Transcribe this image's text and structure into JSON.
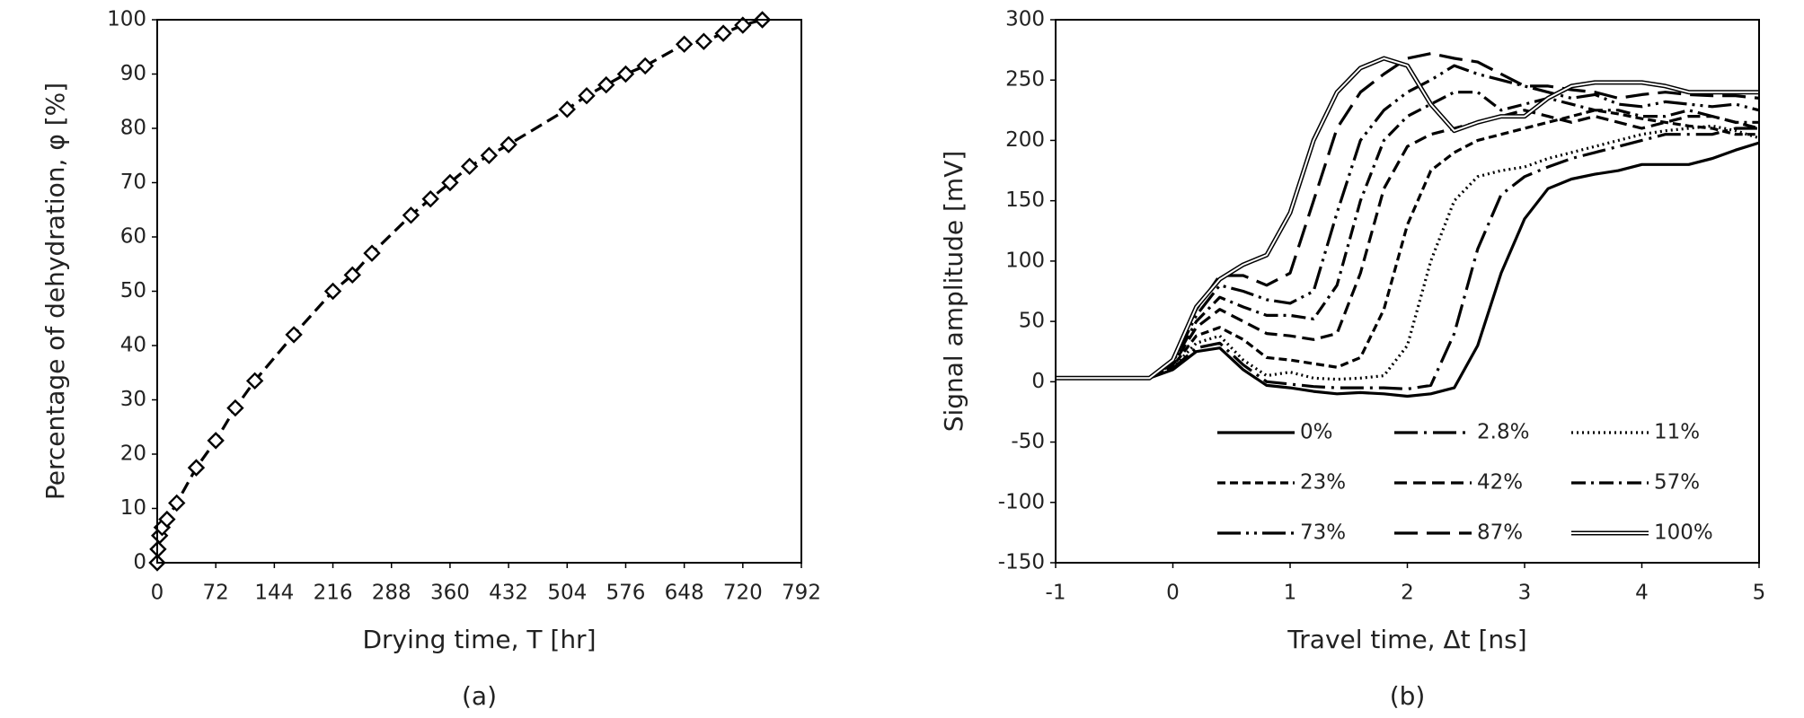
{
  "chart_data": [
    {
      "type": "line",
      "caption": "(a)",
      "x_label": "Drying time, T [hr]",
      "y_label": "Percentage of dehydration, φ [%]",
      "marker": "diamond",
      "dash": "dash",
      "color": "#000000",
      "x": [
        0,
        1,
        3,
        6,
        12,
        24,
        48,
        72,
        96,
        120,
        168,
        216,
        240,
        264,
        312,
        336,
        360,
        384,
        408,
        432,
        504,
        528,
        552,
        576,
        600,
        648,
        672,
        696,
        720,
        744
      ],
      "values": [
        0,
        2.5,
        5,
        6.5,
        8,
        11,
        17.5,
        22.5,
        28.5,
        33.5,
        42,
        50,
        53,
        57,
        64,
        67,
        70,
        73,
        75,
        77,
        83.5,
        86,
        88,
        90,
        91.5,
        95.5,
        96,
        97.5,
        99,
        100
      ],
      "xlim": [
        0,
        792
      ],
      "xticks": [
        0,
        72,
        144,
        216,
        288,
        360,
        432,
        504,
        576,
        648,
        720,
        792
      ],
      "ylim": [
        0,
        100
      ],
      "yticks": [
        0,
        10,
        20,
        30,
        40,
        50,
        60,
        70,
        80,
        90,
        100
      ]
    },
    {
      "type": "line",
      "caption": "(b)",
      "x_label": "Travel time, Δt [ns]",
      "y_label": "Signal amplitude [mV]",
      "legend": "lower right",
      "x": [
        -1,
        -0.8,
        -0.6,
        -0.4,
        -0.2,
        0,
        0.2,
        0.4,
        0.6,
        0.8,
        1,
        1.2,
        1.4,
        1.6,
        1.8,
        2,
        2.2,
        2.4,
        2.6,
        2.8,
        3,
        3.2,
        3.4,
        3.6,
        3.8,
        4,
        4.2,
        4.4,
        4.6,
        4.8,
        5
      ],
      "series": [
        {
          "name": "0%",
          "color": "#000000",
          "dash": "solid",
          "values": [
            3,
            3,
            3,
            3,
            3,
            10,
            25,
            28,
            10,
            -3,
            -5,
            -8,
            -10,
            -9,
            -10,
            -12,
            -10,
            -5,
            30,
            90,
            135,
            160,
            168,
            172,
            175,
            180,
            180,
            180,
            185,
            192,
            198
          ]
        },
        {
          "name": "2.8%",
          "color": "#000000",
          "dash": "long-dash-dot",
          "values": [
            3,
            3,
            3,
            3,
            3,
            11,
            28,
            32,
            14,
            0,
            -2,
            -4,
            -5,
            -5,
            -5,
            -6,
            -3,
            40,
            110,
            155,
            170,
            178,
            185,
            190,
            195,
            200,
            205,
            205,
            205,
            210,
            210
          ]
        },
        {
          "name": "11%",
          "color": "#000000",
          "dash": "dotted",
          "values": [
            3,
            3,
            3,
            3,
            3,
            12,
            32,
            38,
            18,
            5,
            8,
            3,
            2,
            3,
            5,
            30,
            100,
            150,
            170,
            175,
            178,
            185,
            190,
            195,
            200,
            205,
            208,
            210,
            212,
            208,
            202
          ]
        },
        {
          "name": "23%",
          "color": "#000000",
          "dash": "short-dash",
          "values": [
            3,
            3,
            3,
            3,
            3,
            13,
            38,
            45,
            35,
            20,
            18,
            15,
            12,
            20,
            60,
            130,
            175,
            190,
            200,
            205,
            210,
            215,
            220,
            225,
            222,
            218,
            215,
            212,
            210,
            205,
            205
          ]
        },
        {
          "name": "42%",
          "color": "#000000",
          "dash": "dash",
          "values": [
            3,
            3,
            3,
            3,
            3,
            14,
            45,
            60,
            50,
            40,
            38,
            35,
            40,
            90,
            160,
            195,
            205,
            210,
            215,
            220,
            225,
            220,
            215,
            220,
            215,
            210,
            215,
            220,
            220,
            215,
            210
          ]
        },
        {
          "name": "57%",
          "color": "#000000",
          "dash": "dash-dot",
          "values": [
            3,
            3,
            3,
            3,
            3,
            15,
            50,
            70,
            62,
            55,
            55,
            52,
            80,
            150,
            200,
            220,
            230,
            240,
            240,
            225,
            230,
            235,
            230,
            225,
            225,
            220,
            220,
            225,
            220,
            215,
            215
          ]
        },
        {
          "name": "73%",
          "color": "#000000",
          "dash": "long-dash-dot-dot",
          "values": [
            3,
            3,
            3,
            3,
            3,
            16,
            55,
            80,
            75,
            68,
            65,
            75,
            140,
            200,
            225,
            240,
            250,
            262,
            255,
            250,
            245,
            240,
            235,
            238,
            230,
            228,
            232,
            230,
            228,
            230,
            225
          ]
        },
        {
          "name": "87%",
          "color": "#000000",
          "dash": "long-dash",
          "values": [
            3,
            3,
            3,
            3,
            3,
            17,
            60,
            88,
            88,
            80,
            90,
            150,
            210,
            240,
            255,
            268,
            272,
            268,
            265,
            255,
            245,
            245,
            242,
            240,
            235,
            238,
            240,
            238,
            237,
            237,
            235
          ]
        },
        {
          "name": "100%",
          "color": "#000000",
          "dash": "double",
          "values": [
            3,
            3,
            3,
            3,
            3,
            18,
            62,
            85,
            97,
            105,
            140,
            200,
            240,
            260,
            268,
            262,
            230,
            208,
            215,
            220,
            220,
            235,
            245,
            248,
            248,
            248,
            245,
            240,
            240,
            240,
            240
          ]
        }
      ],
      "xlim": [
        -1,
        5
      ],
      "xticks": [
        -1,
        0,
        1,
        2,
        3,
        4,
        5
      ],
      "ylim": [
        -150,
        300
      ],
      "yticks": [
        -150,
        -100,
        -50,
        0,
        50,
        100,
        150,
        200,
        250,
        300
      ]
    }
  ]
}
